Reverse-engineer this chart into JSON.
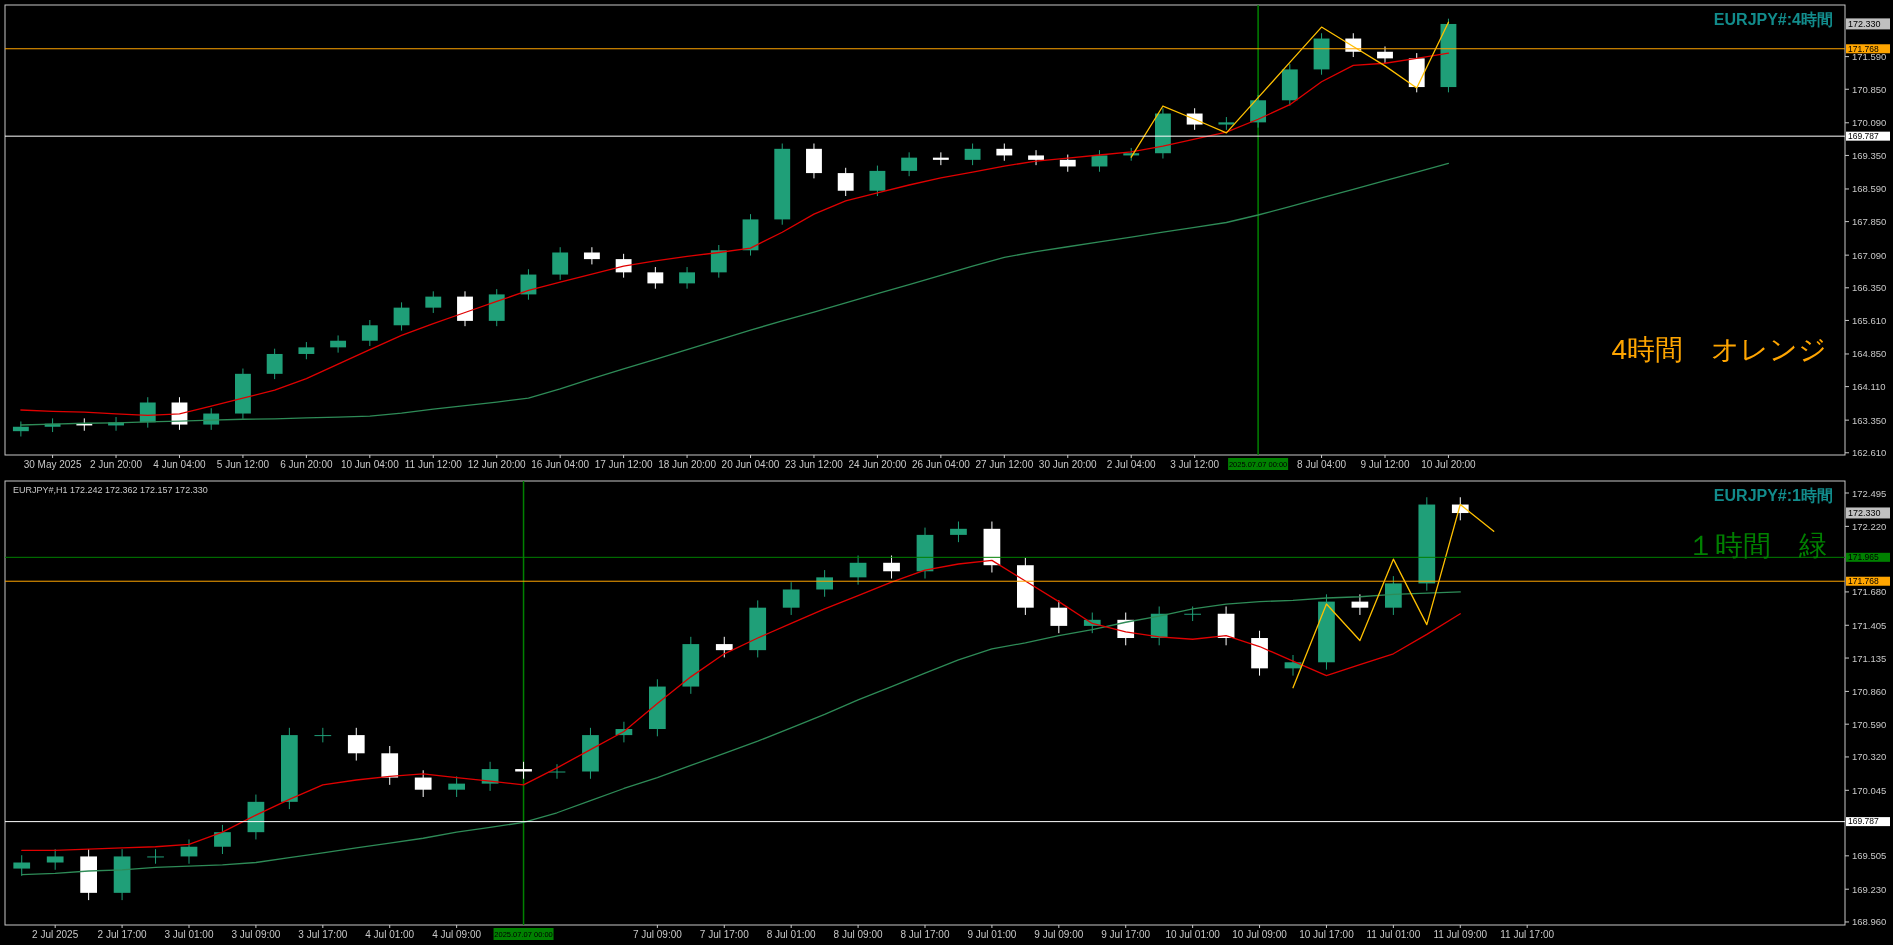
{
  "chart_data": [
    {
      "type": "candlestick",
      "title": "EURJPY#:4時間",
      "annotations": [
        "4時間　オレンジ",
        "172.330"
      ],
      "categories": [
        null,
        "30 May 2025",
        null,
        "2 Jun 20:00",
        null,
        "4 Jun 04:00",
        null,
        "5 Jun 12:00",
        null,
        "6 Jun 20:00",
        null,
        "10 Jun 04:00",
        null,
        "11 Jun 12:00",
        null,
        "12 Jun 20:00",
        null,
        "16 Jun 04:00",
        null,
        "17 Jun 12:00",
        null,
        "18 Jun 20:00",
        null,
        "20 Jun 04:00",
        null,
        "23 Jun 12:00",
        null,
        "24 Jun 20:00",
        null,
        "26 Jun 04:00",
        null,
        "27 Jun 12:00",
        null,
        "30 Jun 20:00",
        null,
        "2 Jul 04:00",
        null,
        "3 Jul 12:00",
        null,
        "2025.07.07 00:00",
        null,
        "8 Jul 04:00",
        null,
        "9 Jul 12:00",
        null,
        "10 Jul 20:00",
        null,
        null,
        null,
        null,
        null,
        null,
        null,
        null,
        null,
        null,
        null,
        null
      ],
      "ylim": [
        162.56,
        172.76
      ],
      "yticks": [
        {
          "value": 162.61,
          "label": "162.610"
        },
        {
          "value": 163.35,
          "label": "163.350"
        },
        {
          "value": 164.11,
          "label": "164.110"
        },
        {
          "value": 164.85,
          "label": "164.850"
        },
        {
          "value": 165.61,
          "label": "165.610"
        },
        {
          "value": 166.35,
          "label": "166.350"
        },
        {
          "value": 167.09,
          "label": "167.090"
        },
        {
          "value": 167.85,
          "label": "167.850"
        },
        {
          "value": 168.59,
          "label": "168.590"
        },
        {
          "value": 169.35,
          "label": "169.350"
        },
        {
          "value": 170.09,
          "label": "170.090"
        },
        {
          "value": 170.85,
          "label": "170.850"
        },
        {
          "value": 171.59,
          "label": "171.590"
        }
      ],
      "ref_lines": [
        {
          "axis": "y",
          "value": 171.768,
          "label": "171.768",
          "color": "#ffa500"
        },
        {
          "axis": "y",
          "value": 169.787,
          "label": "169.787",
          "color": "#ffffff"
        },
        {
          "axis": "x",
          "value": "2025.07.07 00:00",
          "color": "#008000"
        }
      ],
      "ohlc": [
        [
          163.1,
          163.32,
          162.98,
          163.2
        ],
        [
          163.2,
          163.39,
          163.08,
          163.27
        ],
        [
          163.27,
          163.39,
          163.11,
          163.23
        ],
        [
          163.23,
          163.42,
          163.11,
          163.3
        ],
        [
          163.3,
          163.87,
          163.18,
          163.75
        ],
        [
          163.75,
          163.87,
          163.13,
          163.25
        ],
        [
          163.25,
          163.62,
          163.13,
          163.5
        ],
        [
          163.5,
          164.52,
          163.38,
          164.4
        ],
        [
          164.4,
          164.97,
          164.28,
          164.85
        ],
        [
          164.85,
          165.12,
          164.73,
          165.0
        ],
        [
          165.0,
          165.27,
          164.88,
          165.15
        ],
        [
          165.15,
          165.62,
          165.03,
          165.5
        ],
        [
          165.5,
          166.02,
          165.38,
          165.9
        ],
        [
          165.9,
          166.27,
          165.78,
          166.15
        ],
        [
          166.15,
          166.27,
          165.48,
          165.6
        ],
        [
          165.6,
          166.32,
          165.48,
          166.2
        ],
        [
          166.2,
          166.77,
          166.08,
          166.65
        ],
        [
          166.65,
          167.27,
          166.53,
          167.15
        ],
        [
          167.15,
          167.27,
          166.88,
          167.0
        ],
        [
          167.0,
          167.12,
          166.58,
          166.7
        ],
        [
          166.7,
          166.82,
          166.33,
          166.45
        ],
        [
          166.45,
          166.82,
          166.33,
          166.7
        ],
        [
          166.7,
          167.32,
          166.58,
          167.2
        ],
        [
          167.2,
          168.02,
          167.08,
          167.9
        ],
        [
          167.9,
          169.62,
          167.78,
          169.5
        ],
        [
          169.5,
          169.62,
          168.83,
          168.95
        ],
        [
          168.95,
          169.07,
          168.43,
          168.55
        ],
        [
          168.55,
          169.12,
          168.43,
          169.0
        ],
        [
          169.0,
          169.42,
          168.88,
          169.3
        ],
        [
          169.3,
          169.42,
          169.13,
          169.25
        ],
        [
          169.25,
          169.62,
          169.13,
          169.5
        ],
        [
          169.5,
          169.62,
          169.23,
          169.35
        ],
        [
          169.35,
          169.47,
          169.13,
          169.25
        ],
        [
          169.25,
          169.37,
          168.98,
          169.1
        ],
        [
          169.1,
          169.47,
          168.98,
          169.35
        ],
        [
          169.35,
          169.52,
          169.23,
          169.4
        ],
        [
          169.4,
          170.42,
          169.28,
          170.3
        ],
        [
          170.3,
          170.42,
          169.93,
          170.05
        ],
        [
          170.05,
          170.22,
          169.93,
          170.1
        ],
        [
          170.1,
          170.72,
          169.98,
          170.6
        ],
        [
          170.6,
          171.42,
          170.48,
          171.3
        ],
        [
          171.3,
          172.12,
          171.18,
          172.0
        ],
        [
          172.0,
          172.12,
          171.58,
          171.7
        ],
        [
          171.7,
          171.82,
          171.43,
          171.55
        ],
        [
          171.55,
          171.67,
          170.78,
          170.9
        ],
        [
          170.9,
          172.45,
          170.78,
          172.33
        ],
        null,
        null,
        null,
        null,
        null,
        null,
        null,
        null,
        null,
        null,
        null,
        null
      ],
      "series": [
        {
          "type": "line",
          "color": "#2e8b57",
          "values": [
            163.24,
            163.26,
            163.28,
            163.29,
            163.31,
            163.33,
            163.35,
            163.37,
            163.38,
            163.4,
            163.42,
            163.44,
            163.51,
            163.6,
            163.68,
            163.76,
            163.85,
            164.06,
            164.29,
            164.51,
            164.73,
            164.95,
            165.17,
            165.39,
            165.6,
            165.8,
            166.01,
            166.22,
            166.42,
            166.63,
            166.84,
            167.04,
            167.17,
            167.28,
            167.39,
            167.5,
            167.61,
            167.72,
            167.83,
            168.0,
            168.19,
            168.39,
            168.58,
            168.78,
            168.97,
            169.17,
            null,
            null,
            null,
            null,
            null,
            null,
            null,
            null,
            null,
            null,
            null,
            null
          ]
        },
        {
          "type": "line",
          "color": "#e00000",
          "values": [
            163.58,
            163.55,
            163.53,
            163.49,
            163.46,
            163.49,
            163.67,
            163.85,
            164.03,
            164.29,
            164.62,
            164.95,
            165.27,
            165.54,
            165.79,
            166.04,
            166.29,
            166.48,
            166.66,
            166.84,
            166.96,
            167.06,
            167.15,
            167.25,
            167.61,
            168.02,
            168.32,
            168.5,
            168.68,
            168.84,
            168.97,
            169.11,
            169.22,
            169.29,
            169.36,
            169.43,
            169.56,
            169.72,
            169.88,
            170.17,
            170.5,
            171.02,
            171.39,
            171.44,
            171.55,
            171.67,
            null,
            null,
            null,
            null,
            null,
            null,
            null,
            null,
            null,
            null,
            null,
            null
          ]
        },
        {
          "type": "line",
          "color": "#ffc000",
          "values": [
            null,
            null,
            null,
            null,
            null,
            null,
            null,
            null,
            null,
            null,
            null,
            null,
            null,
            null,
            null,
            null,
            null,
            null,
            null,
            null,
            null,
            null,
            null,
            null,
            null,
            null,
            null,
            null,
            null,
            null,
            null,
            null,
            null,
            null,
            null,
            169.31,
            170.47,
            170.17,
            169.86,
            170.66,
            171.46,
            172.26,
            171.82,
            171.38,
            170.88,
            172.37,
            null,
            null,
            null,
            null,
            null,
            null,
            null,
            null,
            null,
            null,
            null,
            null
          ]
        }
      ]
    },
    {
      "type": "candlestick",
      "title": "EURJPY#:1時間",
      "subtitle": "EURJPY#,H1  172.242 172.362 172.157 172.330",
      "annotations": [
        "１時間　緑",
        "172.330"
      ],
      "categories": [
        null,
        "2 Jul 2025",
        null,
        "2 Jul 17:00",
        null,
        "3 Jul 01:00",
        null,
        "3 Jul 09:00",
        null,
        "3 Jul 17:00",
        null,
        "4 Jul 01:00",
        null,
        "4 Jul 09:00",
        null,
        "2025.07.07 00:00",
        null,
        null,
        null,
        "7 Jul 09:00",
        null,
        "7 Jul 17:00",
        null,
        "8 Jul 01:00",
        null,
        "8 Jul 09:00",
        null,
        "8 Jul 17:00",
        null,
        "9 Jul 01:00",
        null,
        "9 Jul 09:00",
        null,
        "9 Jul 17:00",
        null,
        "10 Jul 01:00",
        null,
        "10 Jul 09:00",
        null,
        "10 Jul 17:00",
        null,
        "11 Jul 01:00",
        null,
        "11 Jul 09:00",
        null,
        "11 Jul 17:00",
        null,
        null,
        null,
        null,
        null,
        null,
        null,
        null,
        null
      ],
      "ylim": [
        168.935,
        172.594
      ],
      "yticks": [
        {
          "value": 168.96,
          "label": "168.960"
        },
        {
          "value": 169.23,
          "label": "169.230"
        },
        {
          "value": 169.505,
          "label": "169.505"
        },
        {
          "value": 170.045,
          "label": "170.045"
        },
        {
          "value": 170.32,
          "label": "170.320"
        },
        {
          "value": 170.59,
          "label": "170.590"
        },
        {
          "value": 170.86,
          "label": "170.860"
        },
        {
          "value": 171.135,
          "label": "171.135"
        },
        {
          "value": 171.405,
          "label": "171.405"
        },
        {
          "value": 171.68,
          "label": "171.680"
        },
        {
          "value": 172.22,
          "label": "172.220"
        },
        {
          "value": 172.495,
          "label": "172.495"
        }
      ],
      "ref_lines": [
        {
          "axis": "y",
          "value": 171.965,
          "label": "171.965",
          "color": "#008000"
        },
        {
          "axis": "y",
          "value": 171.768,
          "label": "171.768",
          "color": "#ffa500"
        },
        {
          "axis": "y",
          "value": 169.787,
          "label": "169.787",
          "color": "#ffffff"
        },
        {
          "axis": "x",
          "value": "2025.07.07 00:00",
          "color": "#008000"
        }
      ],
      "ohlc": [
        [
          169.4,
          169.51,
          169.34,
          169.45
        ],
        [
          169.45,
          169.56,
          169.39,
          169.5
        ],
        [
          169.5,
          169.56,
          169.14,
          169.2
        ],
        [
          169.2,
          169.56,
          169.14,
          169.5
        ],
        [
          169.5,
          169.56,
          169.44,
          169.5
        ],
        [
          169.5,
          169.64,
          169.44,
          169.58
        ],
        [
          169.58,
          169.76,
          169.52,
          169.7
        ],
        [
          169.7,
          170.01,
          169.64,
          169.95
        ],
        [
          169.95,
          170.56,
          169.89,
          170.5
        ],
        [
          170.5,
          170.56,
          170.44,
          170.5
        ],
        [
          170.5,
          170.56,
          170.29,
          170.35
        ],
        [
          170.35,
          170.41,
          170.09,
          170.15
        ],
        [
          170.15,
          170.21,
          169.99,
          170.05
        ],
        [
          170.05,
          170.16,
          169.99,
          170.1
        ],
        [
          170.1,
          170.28,
          170.04,
          170.22
        ],
        [
          170.22,
          170.28,
          170.14,
          170.2
        ],
        [
          170.2,
          170.26,
          170.14,
          170.2
        ],
        [
          170.2,
          170.56,
          170.14,
          170.5
        ],
        [
          170.5,
          170.61,
          170.44,
          170.55
        ],
        [
          170.55,
          170.96,
          170.49,
          170.9
        ],
        [
          170.9,
          171.31,
          170.84,
          171.25
        ],
        [
          171.25,
          171.31,
          171.14,
          171.2
        ],
        [
          171.2,
          171.61,
          171.14,
          171.55
        ],
        [
          171.55,
          171.76,
          171.49,
          171.7
        ],
        [
          171.7,
          171.86,
          171.64,
          171.8
        ],
        [
          171.8,
          171.98,
          171.74,
          171.92
        ],
        [
          171.92,
          171.98,
          171.79,
          171.85
        ],
        [
          171.85,
          172.21,
          171.79,
          172.15
        ],
        [
          172.15,
          172.26,
          172.09,
          172.2
        ],
        [
          172.2,
          172.26,
          171.84,
          171.9
        ],
        [
          171.9,
          171.96,
          171.49,
          171.55
        ],
        [
          171.55,
          171.61,
          171.34,
          171.4
        ],
        [
          171.4,
          171.51,
          171.34,
          171.45
        ],
        [
          171.45,
          171.51,
          171.24,
          171.3
        ],
        [
          171.3,
          171.56,
          171.24,
          171.5
        ],
        [
          171.5,
          171.56,
          171.44,
          171.5
        ],
        [
          171.5,
          171.56,
          171.24,
          171.3
        ],
        [
          171.3,
          171.36,
          170.99,
          171.05
        ],
        [
          171.05,
          171.16,
          170.99,
          171.1
        ],
        [
          171.1,
          171.66,
          171.04,
          171.6
        ],
        [
          171.6,
          171.66,
          171.49,
          171.55
        ],
        [
          171.55,
          171.81,
          171.49,
          171.75
        ],
        [
          171.75,
          172.46,
          171.69,
          172.4
        ],
        [
          172.4,
          172.46,
          172.27,
          172.33
        ],
        null,
        null,
        null,
        null,
        null,
        null,
        null,
        null,
        null,
        null,
        null
      ],
      "series": [
        {
          "type": "line",
          "color": "#2e8b57",
          "values": [
            169.35,
            169.36,
            169.38,
            169.39,
            169.41,
            169.42,
            169.43,
            169.45,
            169.49,
            169.53,
            169.57,
            169.61,
            169.65,
            169.7,
            169.74,
            169.78,
            169.86,
            169.96,
            170.06,
            170.15,
            170.25,
            170.35,
            170.45,
            170.56,
            170.67,
            170.79,
            170.9,
            171.01,
            171.12,
            171.21,
            171.26,
            171.32,
            171.37,
            171.43,
            171.48,
            171.54,
            171.58,
            171.6,
            171.61,
            171.63,
            171.64,
            171.66,
            171.67,
            171.68,
            null,
            null,
            null,
            null,
            null,
            null,
            null,
            null,
            null,
            null,
            null
          ]
        },
        {
          "type": "line",
          "color": "#e00000",
          "values": [
            169.55,
            169.55,
            169.56,
            169.57,
            169.58,
            169.6,
            169.7,
            169.84,
            169.97,
            170.09,
            170.13,
            170.16,
            170.18,
            170.15,
            170.12,
            170.09,
            170.23,
            170.38,
            170.53,
            170.76,
            170.98,
            171.17,
            171.3,
            171.42,
            171.54,
            171.65,
            171.76,
            171.86,
            171.91,
            171.94,
            171.77,
            171.6,
            171.42,
            171.35,
            171.31,
            171.29,
            171.32,
            171.23,
            171.11,
            170.99,
            171.08,
            171.17,
            171.33,
            171.5,
            null,
            null,
            null,
            null,
            null,
            null,
            null,
            null,
            null,
            null,
            null
          ]
        },
        {
          "type": "line",
          "color": "#ffc000",
          "values": [
            null,
            null,
            null,
            null,
            null,
            null,
            null,
            null,
            null,
            null,
            null,
            null,
            null,
            null,
            null,
            null,
            null,
            null,
            null,
            null,
            null,
            null,
            null,
            null,
            null,
            null,
            null,
            null,
            null,
            null,
            null,
            null,
            null,
            null,
            null,
            null,
            null,
            null,
            170.89,
            171.58,
            171.28,
            171.95,
            171.41,
            172.4,
            172.18,
            null,
            null,
            null,
            null,
            null,
            null,
            null,
            null,
            null,
            null
          ]
        }
      ]
    }
  ]
}
